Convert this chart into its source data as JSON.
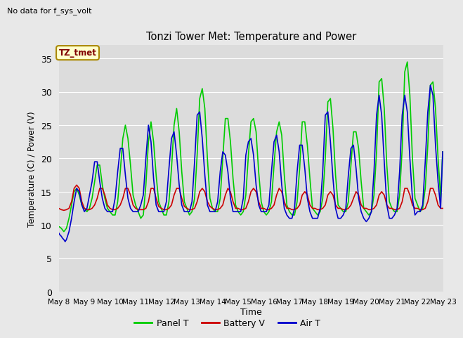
{
  "title": "Tonzi Tower Met: Temperature and Power",
  "xlabel": "Time",
  "ylabel": "Temperature (C) / Power (V)",
  "no_data_text": "No data for f_sys_volt",
  "legend_label_text": "TZ_tmet",
  "ylim": [
    0,
    37
  ],
  "yticks": [
    0,
    5,
    10,
    15,
    20,
    25,
    30,
    35
  ],
  "bg_color": "#e8e8e8",
  "plot_bg_color": "#dcdcdc",
  "grid_color": "#ffffff",
  "panel_t_color": "#00cc00",
  "battery_v_color": "#cc0000",
  "air_t_color": "#0000cc",
  "panel_t_lw": 1.2,
  "battery_v_lw": 1.2,
  "air_t_lw": 1.2,
  "panel_t_x": [
    8.0,
    8.1,
    8.2,
    8.3,
    8.4,
    8.5,
    8.6,
    8.7,
    8.8,
    8.9,
    9.0,
    9.1,
    9.2,
    9.3,
    9.4,
    9.5,
    9.6,
    9.7,
    9.8,
    9.9,
    10.0,
    10.1,
    10.2,
    10.3,
    10.4,
    10.5,
    10.6,
    10.7,
    10.8,
    10.9,
    11.0,
    11.1,
    11.2,
    11.3,
    11.4,
    11.5,
    11.6,
    11.7,
    11.8,
    11.9,
    12.0,
    12.1,
    12.2,
    12.3,
    12.4,
    12.5,
    12.6,
    12.7,
    12.8,
    12.9,
    13.0,
    13.1,
    13.2,
    13.3,
    13.4,
    13.5,
    13.6,
    13.7,
    13.8,
    13.9,
    14.0,
    14.1,
    14.2,
    14.3,
    14.4,
    14.5,
    14.6,
    14.7,
    14.8,
    14.9,
    15.0,
    15.1,
    15.2,
    15.3,
    15.4,
    15.5,
    15.6,
    15.7,
    15.8,
    15.9,
    16.0,
    16.1,
    16.2,
    16.3,
    16.4,
    16.5,
    16.6,
    16.7,
    16.8,
    16.9,
    17.0,
    17.1,
    17.2,
    17.3,
    17.4,
    17.5,
    17.6,
    17.7,
    17.8,
    17.9,
    18.0,
    18.1,
    18.2,
    18.3,
    18.4,
    18.5,
    18.6,
    18.7,
    18.8,
    18.9,
    19.0,
    19.1,
    19.2,
    19.3,
    19.4,
    19.5,
    19.6,
    19.7,
    19.8,
    19.9,
    20.0,
    20.1,
    20.2,
    20.3,
    20.4,
    20.5,
    20.6,
    20.7,
    20.8,
    20.9,
    21.0,
    21.1,
    21.2,
    21.3,
    21.4,
    21.5,
    21.6,
    21.7,
    21.8,
    21.9,
    22.0,
    22.1,
    22.2,
    22.3,
    22.4,
    22.5,
    22.6,
    22.7,
    22.8,
    22.9,
    22.98
  ],
  "panel_t_y": [
    9.8,
    9.5,
    9.0,
    9.5,
    11.0,
    13.0,
    15.0,
    15.5,
    14.5,
    13.0,
    12.5,
    12.0,
    12.5,
    14.0,
    16.5,
    19.0,
    19.0,
    16.0,
    14.0,
    12.5,
    12.0,
    11.5,
    11.5,
    13.5,
    18.0,
    23.0,
    25.0,
    23.0,
    19.0,
    14.5,
    13.0,
    12.0,
    11.0,
    11.5,
    16.0,
    22.5,
    25.5,
    22.5,
    17.5,
    13.5,
    12.5,
    11.5,
    11.5,
    13.5,
    18.5,
    25.0,
    27.5,
    24.0,
    18.0,
    13.5,
    12.5,
    11.5,
    12.0,
    14.0,
    20.5,
    29.0,
    30.5,
    27.5,
    20.0,
    14.0,
    12.5,
    12.0,
    12.0,
    14.0,
    20.0,
    26.0,
    26.0,
    22.5,
    17.0,
    13.0,
    12.0,
    11.5,
    12.0,
    14.5,
    20.5,
    25.5,
    26.0,
    24.0,
    18.0,
    13.5,
    12.0,
    11.5,
    12.0,
    13.5,
    19.0,
    24.0,
    25.5,
    23.5,
    17.5,
    13.0,
    12.0,
    11.5,
    11.5,
    13.5,
    18.5,
    25.5,
    25.5,
    22.0,
    17.0,
    12.5,
    12.0,
    11.5,
    12.0,
    14.0,
    20.0,
    28.5,
    29.0,
    24.5,
    17.5,
    13.0,
    12.5,
    12.0,
    12.0,
    13.5,
    19.0,
    24.0,
    24.0,
    21.5,
    16.5,
    12.5,
    12.0,
    11.5,
    12.0,
    14.5,
    21.0,
    31.5,
    32.0,
    27.5,
    19.0,
    13.5,
    12.5,
    12.0,
    12.0,
    14.5,
    21.5,
    33.0,
    34.5,
    29.5,
    20.0,
    14.0,
    13.0,
    12.0,
    12.5,
    15.5,
    22.0,
    31.0,
    31.5,
    27.5,
    20.0,
    14.0,
    21.0
  ],
  "battery_v_x": [
    8.0,
    8.1,
    8.2,
    8.3,
    8.4,
    8.5,
    8.6,
    8.7,
    8.8,
    8.9,
    9.0,
    9.1,
    9.2,
    9.3,
    9.4,
    9.5,
    9.6,
    9.7,
    9.8,
    9.9,
    10.0,
    10.1,
    10.2,
    10.3,
    10.4,
    10.5,
    10.6,
    10.7,
    10.8,
    10.9,
    11.0,
    11.1,
    11.2,
    11.3,
    11.4,
    11.5,
    11.6,
    11.7,
    11.8,
    11.9,
    12.0,
    12.1,
    12.2,
    12.3,
    12.4,
    12.5,
    12.6,
    12.7,
    12.8,
    12.9,
    13.0,
    13.1,
    13.2,
    13.3,
    13.4,
    13.5,
    13.6,
    13.7,
    13.8,
    13.9,
    14.0,
    14.1,
    14.2,
    14.3,
    14.4,
    14.5,
    14.6,
    14.7,
    14.8,
    14.9,
    15.0,
    15.1,
    15.2,
    15.3,
    15.4,
    15.5,
    15.6,
    15.7,
    15.8,
    15.9,
    16.0,
    16.1,
    16.2,
    16.3,
    16.4,
    16.5,
    16.6,
    16.7,
    16.8,
    16.9,
    17.0,
    17.1,
    17.2,
    17.3,
    17.4,
    17.5,
    17.6,
    17.7,
    17.8,
    17.9,
    18.0,
    18.1,
    18.2,
    18.3,
    18.4,
    18.5,
    18.6,
    18.7,
    18.8,
    18.9,
    19.0,
    19.1,
    19.2,
    19.3,
    19.4,
    19.5,
    19.6,
    19.7,
    19.8,
    19.9,
    20.0,
    20.1,
    20.2,
    20.3,
    20.4,
    20.5,
    20.6,
    20.7,
    20.8,
    20.9,
    21.0,
    21.1,
    21.2,
    21.3,
    21.4,
    21.5,
    21.6,
    21.7,
    21.8,
    21.9,
    22.0,
    22.1,
    22.2,
    22.3,
    22.4,
    22.5,
    22.6,
    22.7,
    22.8,
    22.9,
    22.98
  ],
  "battery_v_y": [
    12.5,
    12.3,
    12.2,
    12.3,
    12.5,
    13.5,
    15.5,
    16.0,
    15.5,
    13.5,
    12.5,
    12.3,
    12.3,
    12.5,
    13.0,
    14.0,
    15.5,
    15.5,
    14.5,
    13.0,
    12.5,
    12.3,
    12.3,
    12.5,
    13.0,
    14.0,
    15.5,
    15.5,
    14.5,
    13.0,
    12.5,
    12.3,
    12.3,
    12.3,
    12.5,
    13.5,
    15.5,
    15.5,
    14.0,
    12.8,
    12.5,
    12.3,
    12.3,
    12.5,
    13.0,
    14.5,
    15.5,
    15.5,
    14.0,
    12.8,
    12.5,
    12.3,
    12.3,
    12.5,
    13.5,
    15.0,
    15.5,
    15.0,
    13.5,
    12.8,
    12.5,
    12.3,
    12.3,
    12.5,
    13.0,
    14.5,
    15.5,
    15.0,
    13.5,
    12.5,
    12.5,
    12.3,
    12.3,
    12.5,
    13.5,
    15.0,
    15.5,
    15.0,
    13.5,
    12.5,
    12.5,
    12.3,
    12.3,
    12.5,
    13.0,
    14.5,
    15.5,
    15.0,
    13.5,
    12.5,
    12.5,
    12.3,
    12.3,
    12.5,
    13.0,
    14.5,
    15.0,
    14.5,
    13.0,
    12.5,
    12.5,
    12.3,
    12.3,
    12.5,
    13.0,
    14.5,
    15.0,
    14.5,
    13.0,
    12.5,
    12.5,
    12.3,
    12.3,
    12.5,
    13.0,
    14.0,
    15.0,
    14.5,
    13.0,
    12.5,
    12.5,
    12.3,
    12.3,
    12.5,
    13.0,
    14.5,
    15.0,
    14.5,
    13.0,
    12.5,
    12.5,
    12.3,
    12.3,
    12.5,
    13.5,
    15.5,
    15.5,
    14.5,
    13.0,
    12.5,
    12.5,
    12.3,
    12.3,
    12.5,
    13.5,
    15.5,
    15.5,
    14.5,
    13.0,
    12.5,
    12.5
  ],
  "air_t_x": [
    8.0,
    8.05,
    8.1,
    8.15,
    8.2,
    8.25,
    8.3,
    8.4,
    8.5,
    8.6,
    8.7,
    8.8,
    8.9,
    9.0,
    9.1,
    9.2,
    9.3,
    9.4,
    9.5,
    9.6,
    9.7,
    9.8,
    9.9,
    10.0,
    10.1,
    10.2,
    10.3,
    10.4,
    10.5,
    10.6,
    10.7,
    10.8,
    10.9,
    11.0,
    11.1,
    11.2,
    11.3,
    11.4,
    11.5,
    11.6,
    11.7,
    11.8,
    11.9,
    12.0,
    12.1,
    12.2,
    12.3,
    12.4,
    12.5,
    12.6,
    12.7,
    12.8,
    12.9,
    13.0,
    13.1,
    13.2,
    13.3,
    13.4,
    13.5,
    13.6,
    13.7,
    13.8,
    13.9,
    14.0,
    14.1,
    14.2,
    14.3,
    14.4,
    14.5,
    14.6,
    14.7,
    14.8,
    14.9,
    15.0,
    15.1,
    15.2,
    15.3,
    15.4,
    15.5,
    15.6,
    15.7,
    15.8,
    15.9,
    16.0,
    16.1,
    16.2,
    16.3,
    16.4,
    16.5,
    16.6,
    16.7,
    16.8,
    16.9,
    17.0,
    17.1,
    17.2,
    17.3,
    17.4,
    17.5,
    17.6,
    17.7,
    17.8,
    17.9,
    18.0,
    18.1,
    18.2,
    18.3,
    18.4,
    18.5,
    18.6,
    18.7,
    18.8,
    18.9,
    19.0,
    19.1,
    19.2,
    19.3,
    19.4,
    19.5,
    19.6,
    19.7,
    19.8,
    19.9,
    20.0,
    20.1,
    20.2,
    20.3,
    20.4,
    20.5,
    20.6,
    20.7,
    20.8,
    20.9,
    21.0,
    21.1,
    21.2,
    21.3,
    21.4,
    21.5,
    21.6,
    21.7,
    21.8,
    21.9,
    22.0,
    22.1,
    22.2,
    22.3,
    22.4,
    22.5,
    22.6,
    22.7,
    22.8,
    22.9,
    22.98
  ],
  "air_t_y": [
    8.8,
    8.5,
    8.3,
    8.0,
    7.8,
    7.5,
    7.8,
    9.0,
    11.0,
    13.5,
    15.5,
    15.0,
    13.0,
    12.0,
    12.5,
    14.5,
    16.5,
    19.5,
    19.5,
    16.5,
    14.0,
    12.5,
    12.0,
    12.0,
    12.0,
    14.0,
    18.0,
    21.5,
    21.5,
    17.5,
    14.0,
    12.5,
    12.0,
    12.0,
    12.0,
    13.0,
    14.5,
    20.0,
    25.0,
    22.5,
    17.0,
    13.0,
    12.0,
    12.0,
    12.0,
    13.5,
    18.5,
    23.0,
    24.0,
    20.5,
    16.0,
    13.0,
    12.0,
    12.0,
    12.0,
    13.5,
    19.5,
    26.5,
    27.0,
    23.0,
    17.5,
    13.0,
    12.0,
    12.0,
    12.0,
    13.5,
    18.0,
    21.0,
    20.5,
    18.0,
    14.0,
    12.0,
    12.0,
    12.0,
    12.0,
    14.0,
    20.5,
    22.5,
    23.0,
    20.5,
    16.0,
    13.0,
    12.0,
    12.0,
    12.0,
    13.0,
    18.0,
    22.5,
    23.5,
    21.0,
    16.0,
    12.5,
    11.5,
    11.0,
    11.0,
    12.5,
    18.0,
    22.0,
    22.0,
    18.5,
    14.0,
    12.0,
    11.0,
    11.0,
    11.0,
    12.5,
    18.0,
    26.5,
    27.0,
    22.5,
    17.0,
    12.5,
    11.0,
    11.0,
    11.5,
    12.5,
    17.5,
    21.5,
    22.0,
    18.5,
    14.0,
    12.0,
    11.0,
    10.5,
    11.0,
    12.0,
    18.0,
    26.5,
    29.5,
    26.5,
    19.5,
    13.0,
    11.0,
    11.0,
    11.5,
    12.5,
    18.0,
    26.5,
    29.5,
    27.0,
    20.0,
    14.0,
    11.5,
    12.0,
    12.0,
    13.0,
    19.5,
    27.0,
    31.0,
    29.5,
    22.0,
    16.5,
    12.5,
    21.0
  ],
  "x_tick_positions": [
    8,
    9,
    10,
    11,
    12,
    13,
    14,
    15,
    16,
    17,
    18,
    19,
    20,
    21,
    22,
    23
  ],
  "x_tick_labels": [
    "May 8",
    "May 9",
    "May 10",
    "May 11",
    "May 12",
    "May 13",
    "May 14",
    "May 15",
    "May 16",
    "May 17",
    "May 18",
    "May 19",
    "May 20",
    "May 21",
    "May 22",
    "May 23"
  ]
}
